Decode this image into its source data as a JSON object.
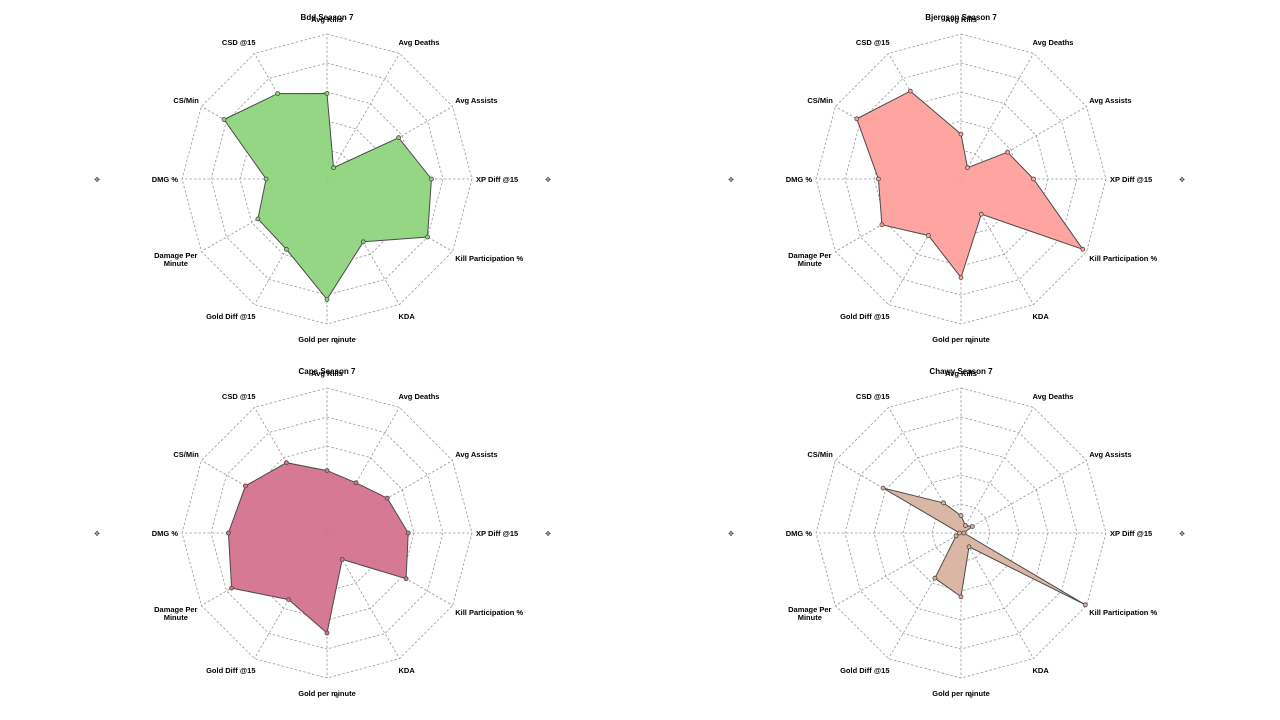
{
  "page": {
    "background": "#ffffff"
  },
  "chart_data": [
    {
      "type": "radar",
      "title": "Bdd Season 7",
      "axes": [
        "Avg Kills",
        "Avg Deaths",
        "Avg Assists",
        "XP Diff @15",
        "Kill Participation %",
        "KDA",
        "Gold per minute",
        "Gold Diff @15",
        "Damage Per Minute",
        "DMG %",
        "CS/Min",
        "CSD @15"
      ],
      "series": [
        {
          "values": [
            0.59,
            0.09,
            0.57,
            0.72,
            0.8,
            0.5,
            0.83,
            0.56,
            0.55,
            0.42,
            0.82,
            0.68
          ],
          "color": "#8fd47d"
        }
      ],
      "rlim": [
        0,
        1
      ]
    },
    {
      "type": "radar",
      "title": "Bjergsen Season 7",
      "axes": [
        "Avg Kills",
        "Avg Deaths",
        "Avg Assists",
        "XP Diff @15",
        "Kill Participation %",
        "KDA",
        "Gold per minute",
        "Gold Diff @15",
        "Damage Per Minute",
        "DMG %",
        "CS/Min",
        "CSD @15"
      ],
      "series": [
        {
          "values": [
            0.31,
            0.09,
            0.37,
            0.5,
            0.97,
            0.28,
            0.68,
            0.45,
            0.63,
            0.57,
            0.83,
            0.7
          ],
          "color": "#ffa09c"
        }
      ],
      "rlim": [
        0,
        1
      ]
    },
    {
      "type": "radar",
      "title": "Caps Season 7",
      "axes": [
        "Avg Kills",
        "Avg Deaths",
        "Avg Assists",
        "XP Diff @15",
        "Kill Participation %",
        "KDA",
        "Gold per minute",
        "Gold Diff @15",
        "Damage Per Minute",
        "DMG %",
        "CS/Min",
        "CSD @15"
      ],
      "series": [
        {
          "values": [
            0.43,
            0.4,
            0.48,
            0.56,
            0.63,
            0.21,
            0.69,
            0.53,
            0.76,
            0.68,
            0.65,
            0.56
          ],
          "color": "#d4728f"
        }
      ],
      "rlim": [
        0,
        1
      ]
    },
    {
      "type": "radar",
      "title": "Chawy Season 7",
      "axes": [
        "Avg Kills",
        "Avg Deaths",
        "Avg Assists",
        "XP Diff @15",
        "Kill Participation %",
        "KDA",
        "Gold per minute",
        "Gold Diff @15",
        "Damage Per Minute",
        "DMG %",
        "CS/Min",
        "CSD @15"
      ],
      "series": [
        {
          "values": [
            0.12,
            0.06,
            0.09,
            0.02,
            0.99,
            0.11,
            0.44,
            0.36,
            0.04,
            0.01,
            0.62,
            0.24
          ],
          "color": "#d8b2a0"
        }
      ],
      "rlim": [
        0,
        1
      ]
    }
  ]
}
